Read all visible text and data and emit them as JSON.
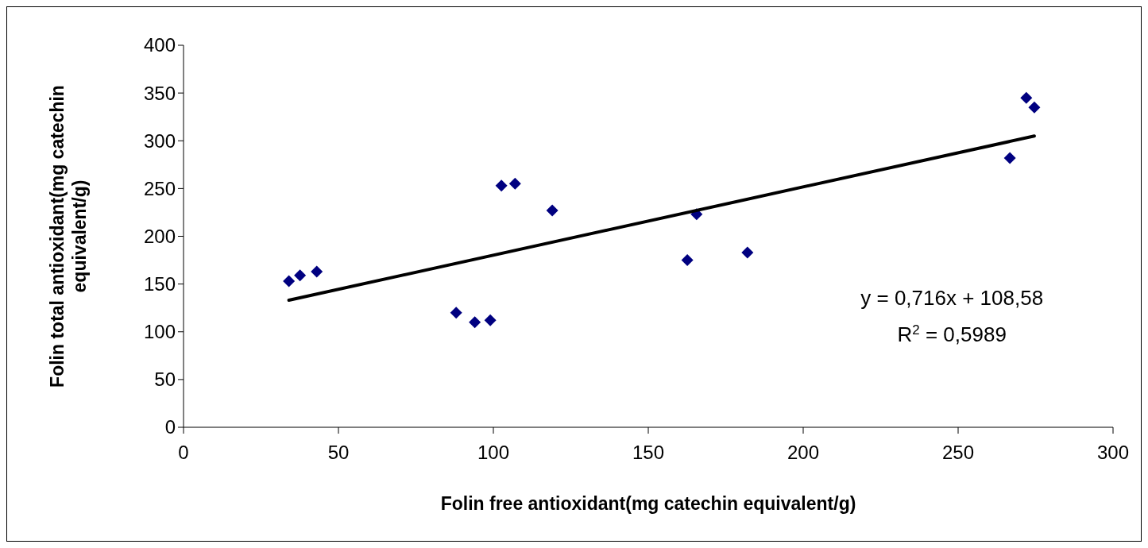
{
  "chart_data": {
    "type": "scatter",
    "xlabel": "Folin free antioxidant(mg catechin equivalent/g)",
    "ylabel": "Folin total antioxidant(mg catechin equivalent/g)",
    "xlim": [
      0,
      300
    ],
    "xticks": [
      0,
      50,
      100,
      150,
      200,
      250,
      300
    ],
    "ylim": [
      0,
      400
    ],
    "yticks": [
      0,
      50,
      100,
      150,
      200,
      250,
      300,
      350,
      400
    ],
    "grid": false,
    "marker": "diamond",
    "annotations": [
      "y = 0,716x + 108,58",
      "R$^{2}$ = 0,5989"
    ],
    "series": [
      {
        "color": "#000080",
        "x": [
          34,
          37.6,
          43,
          88,
          94,
          99,
          102.6,
          107,
          119,
          162.6,
          165.6,
          182,
          266.7,
          272,
          274.6
        ],
        "values": [
          153,
          159,
          163,
          120,
          110,
          112,
          253,
          255,
          227,
          175,
          223,
          183,
          282,
          345,
          335
        ]
      },
      {
        "type": "line",
        "color": "#000000",
        "line_style": "solid",
        "marker": "none",
        "x": [
          34,
          274.6
        ],
        "values": [
          133,
          305
        ]
      }
    ]
  }
}
